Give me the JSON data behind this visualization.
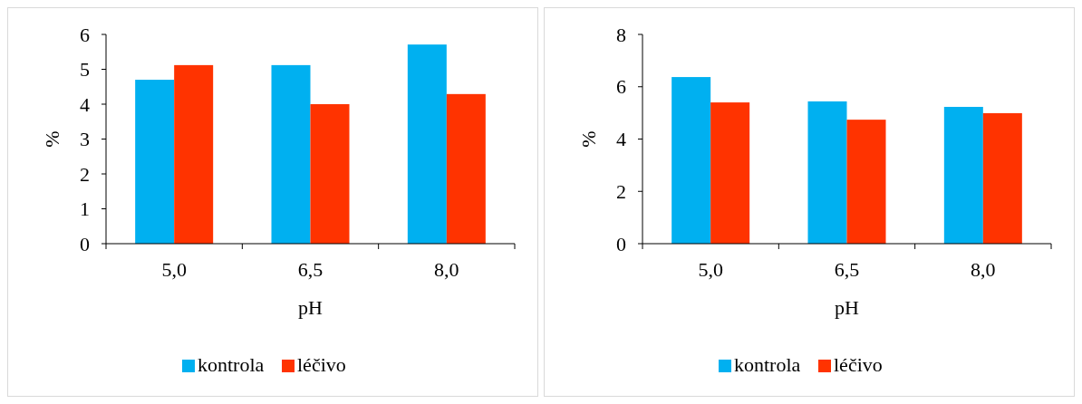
{
  "chart_data": [
    {
      "type": "bar",
      "categories": [
        "5,0",
        "6,5",
        "8,0"
      ],
      "xlabel": "pH",
      "ylabel": "%",
      "ylim": [
        0,
        6
      ],
      "yticks": [
        0,
        1,
        2,
        3,
        4,
        5,
        6
      ],
      "grid": false,
      "legend": "bottom",
      "series": [
        {
          "name": "kontrola",
          "color": "#00b0f0",
          "values": [
            4.7,
            5.12,
            5.71
          ]
        },
        {
          "name": "léčivo",
          "color": "#ff3300",
          "values": [
            5.12,
            4.0,
            4.29
          ]
        }
      ]
    },
    {
      "type": "bar",
      "categories": [
        "5,0",
        "6,5",
        "8,0"
      ],
      "xlabel": "pH",
      "ylabel": "%",
      "ylim": [
        0,
        8
      ],
      "yticks": [
        0,
        2,
        4,
        6,
        8
      ],
      "grid": false,
      "legend": "bottom",
      "series": [
        {
          "name": "kontrola",
          "color": "#00b0f0",
          "values": [
            6.37,
            5.44,
            5.23
          ]
        },
        {
          "name": "léčivo",
          "color": "#ff3300",
          "values": [
            5.4,
            4.74,
            4.99
          ]
        }
      ]
    }
  ]
}
